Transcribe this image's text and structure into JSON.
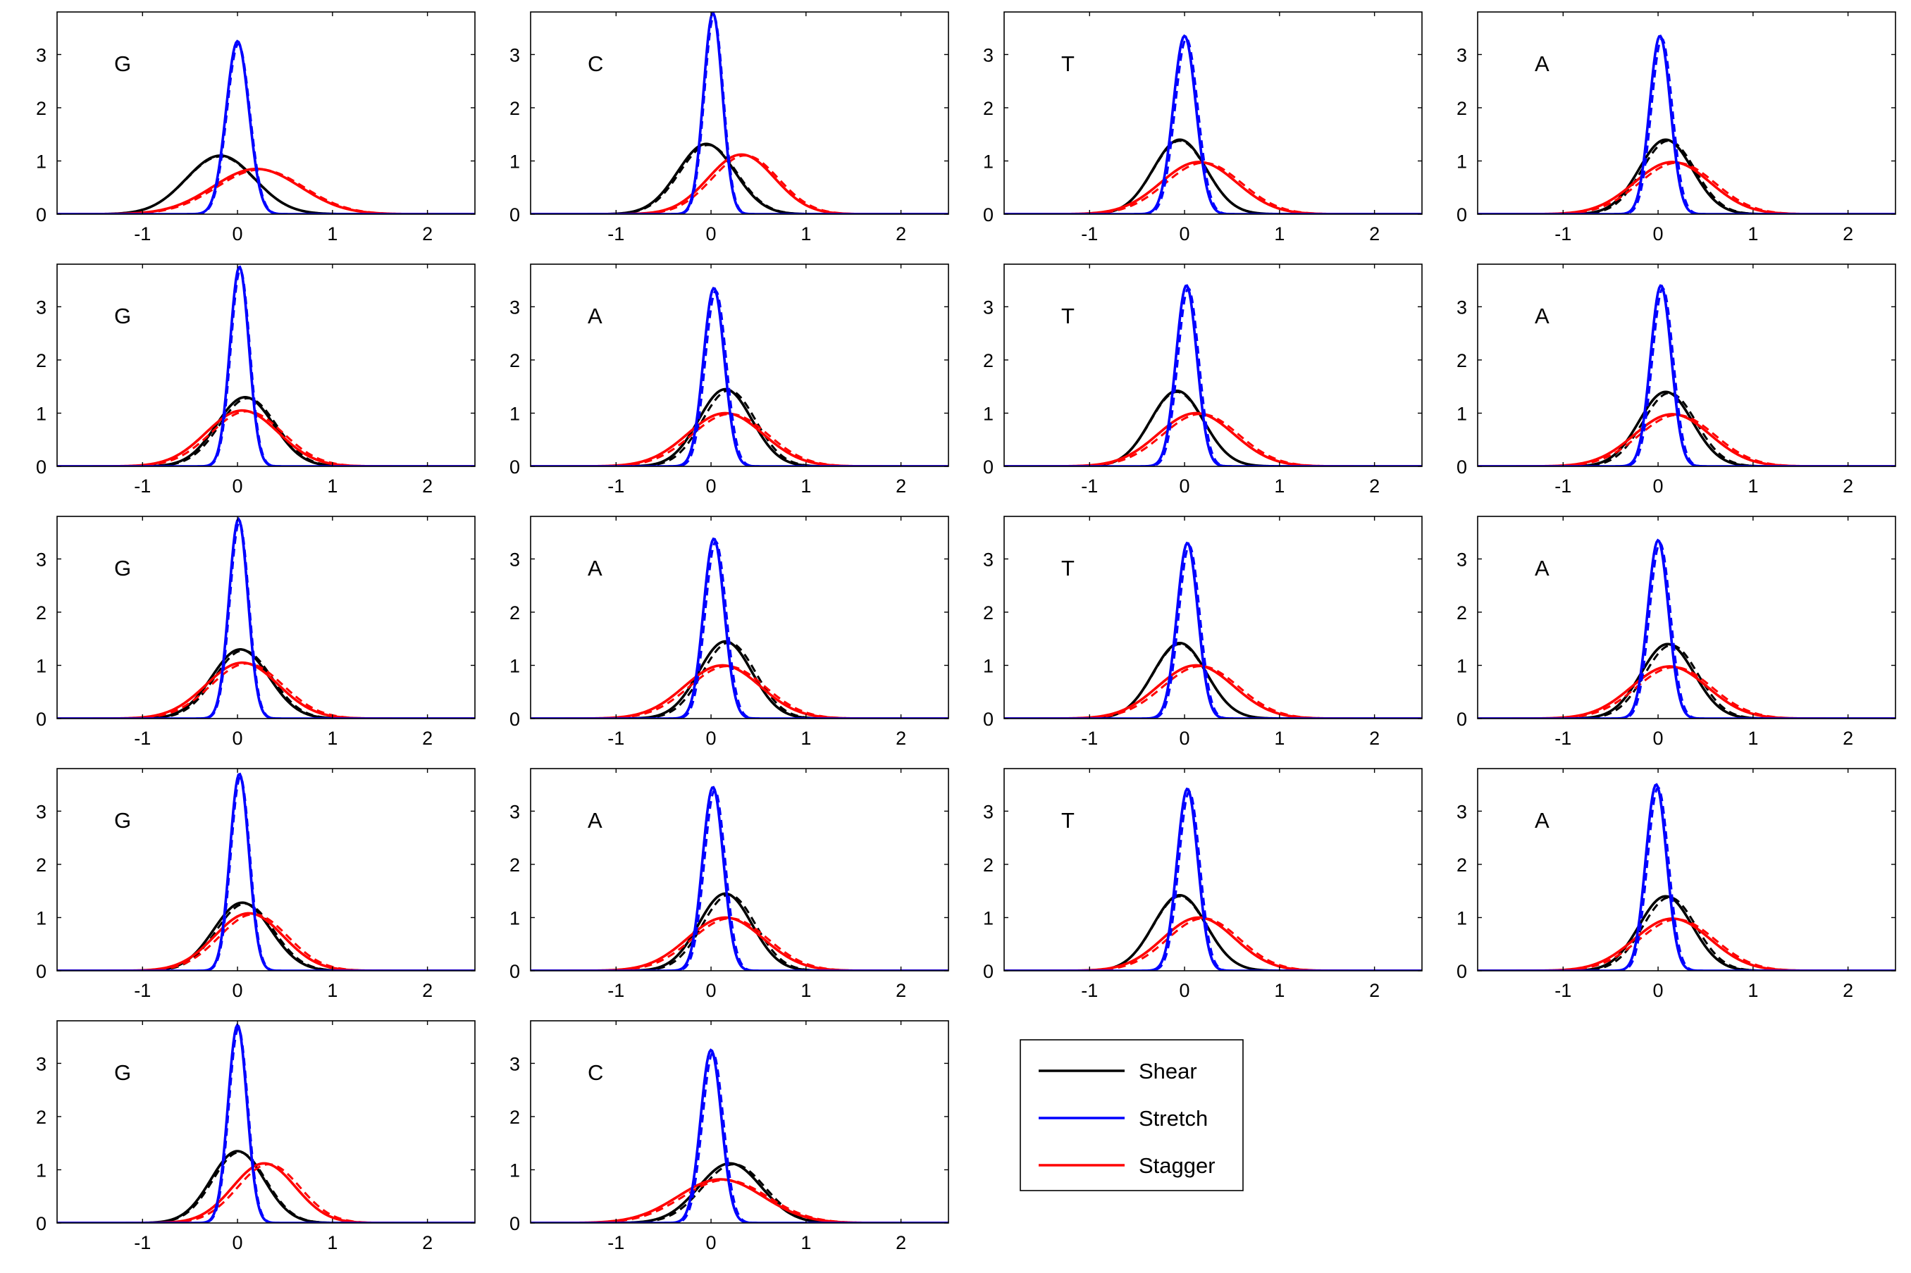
{
  "chart_data": {
    "type": "line",
    "panel_grid": {
      "rows": 5,
      "cols": 4
    },
    "xlim": [
      -1.9,
      2.5
    ],
    "ylim": [
      0,
      3.8
    ],
    "xticks": [
      -1,
      0,
      1,
      2
    ],
    "yticks": [
      0,
      1,
      2,
      3
    ],
    "legend": {
      "placement": "grid-row-5-col-3",
      "entries": [
        {
          "label": "Shear",
          "color": "#000000"
        },
        {
          "label": "Stretch",
          "color": "#0000ff"
        },
        {
          "label": "Stagger",
          "color": "#ff0000"
        }
      ]
    },
    "series_styles": {
      "shear": {
        "color": "#000000"
      },
      "stretch": {
        "color": "#0000ff"
      },
      "stagger": {
        "color": "#ff0000"
      }
    },
    "curve_model": "gaussian density; each curve drawn solid plus a dashed overlay",
    "panels": [
      {
        "label": "G",
        "row": 0,
        "col": 0,
        "curves": {
          "shear": {
            "mean": -0.18,
            "sd": 0.36,
            "peak": 1.1
          },
          "stretch": {
            "mean": 0.0,
            "sd": 0.12,
            "peak": 3.25
          },
          "stagger": {
            "mean": 0.2,
            "sd": 0.46,
            "peak": 0.85
          }
        },
        "dashed_shift": {
          "shear": 0.0,
          "stretch": 0.01,
          "stagger": 0.04
        }
      },
      {
        "label": "C",
        "row": 0,
        "col": 1,
        "curves": {
          "shear": {
            "mean": -0.05,
            "sd": 0.3,
            "peak": 1.32
          },
          "stretch": {
            "mean": 0.02,
            "sd": 0.1,
            "peak": 3.78
          },
          "stagger": {
            "mean": 0.32,
            "sd": 0.35,
            "peak": 1.12
          }
        },
        "dashed_shift": {
          "shear": 0.02,
          "stretch": 0.01,
          "stagger": 0.04
        }
      },
      {
        "label": "T",
        "row": 0,
        "col": 2,
        "curves": {
          "shear": {
            "mean": -0.05,
            "sd": 0.28,
            "peak": 1.4
          },
          "stretch": {
            "mean": 0.0,
            "sd": 0.12,
            "peak": 3.35
          },
          "stagger": {
            "mean": 0.15,
            "sd": 0.4,
            "peak": 0.98
          }
        },
        "dashed_shift": {
          "shear": 0.0,
          "stretch": 0.02,
          "stagger": 0.05
        }
      },
      {
        "label": "A",
        "row": 0,
        "col": 3,
        "curves": {
          "shear": {
            "mean": 0.08,
            "sd": 0.28,
            "peak": 1.4
          },
          "stretch": {
            "mean": 0.02,
            "sd": 0.11,
            "peak": 3.35
          },
          "stagger": {
            "mean": 0.15,
            "sd": 0.4,
            "peak": 0.98
          }
        },
        "dashed_shift": {
          "shear": 0.03,
          "stretch": 0.02,
          "stagger": 0.05
        }
      },
      {
        "label": "G",
        "row": 1,
        "col": 0,
        "curves": {
          "shear": {
            "mean": 0.08,
            "sd": 0.3,
            "peak": 1.3
          },
          "stretch": {
            "mean": 0.02,
            "sd": 0.1,
            "peak": 3.75
          },
          "stagger": {
            "mean": 0.05,
            "sd": 0.38,
            "peak": 1.05
          }
        },
        "dashed_shift": {
          "shear": 0.03,
          "stretch": 0.01,
          "stagger": 0.05
        }
      },
      {
        "label": "A",
        "row": 1,
        "col": 1,
        "curves": {
          "shear": {
            "mean": 0.15,
            "sd": 0.28,
            "peak": 1.45
          },
          "stretch": {
            "mean": 0.03,
            "sd": 0.11,
            "peak": 3.35
          },
          "stagger": {
            "mean": 0.15,
            "sd": 0.4,
            "peak": 1.0
          }
        },
        "dashed_shift": {
          "shear": 0.04,
          "stretch": 0.02,
          "stagger": 0.05
        }
      },
      {
        "label": "T",
        "row": 1,
        "col": 2,
        "curves": {
          "shear": {
            "mean": -0.08,
            "sd": 0.28,
            "peak": 1.42
          },
          "stretch": {
            "mean": 0.02,
            "sd": 0.11,
            "peak": 3.4
          },
          "stagger": {
            "mean": 0.12,
            "sd": 0.4,
            "peak": 1.0
          }
        },
        "dashed_shift": {
          "shear": 0.0,
          "stretch": 0.02,
          "stagger": 0.05
        }
      },
      {
        "label": "A",
        "row": 1,
        "col": 3,
        "curves": {
          "shear": {
            "mean": 0.08,
            "sd": 0.28,
            "peak": 1.4
          },
          "stretch": {
            "mean": 0.03,
            "sd": 0.11,
            "peak": 3.4
          },
          "stagger": {
            "mean": 0.15,
            "sd": 0.4,
            "peak": 0.98
          }
        },
        "dashed_shift": {
          "shear": 0.04,
          "stretch": 0.02,
          "stagger": 0.05
        }
      },
      {
        "label": "G",
        "row": 2,
        "col": 0,
        "curves": {
          "shear": {
            "mean": 0.03,
            "sd": 0.3,
            "peak": 1.3
          },
          "stretch": {
            "mean": 0.01,
            "sd": 0.1,
            "peak": 3.75
          },
          "stagger": {
            "mean": 0.05,
            "sd": 0.38,
            "peak": 1.05
          }
        },
        "dashed_shift": {
          "shear": 0.03,
          "stretch": 0.01,
          "stagger": 0.05
        }
      },
      {
        "label": "A",
        "row": 2,
        "col": 1,
        "curves": {
          "shear": {
            "mean": 0.15,
            "sd": 0.28,
            "peak": 1.45
          },
          "stretch": {
            "mean": 0.03,
            "sd": 0.11,
            "peak": 3.38
          },
          "stagger": {
            "mean": 0.12,
            "sd": 0.4,
            "peak": 1.0
          }
        },
        "dashed_shift": {
          "shear": 0.04,
          "stretch": 0.02,
          "stagger": 0.05
        }
      },
      {
        "label": "T",
        "row": 2,
        "col": 2,
        "curves": {
          "shear": {
            "mean": -0.05,
            "sd": 0.28,
            "peak": 1.42
          },
          "stretch": {
            "mean": 0.03,
            "sd": 0.11,
            "peak": 3.3
          },
          "stagger": {
            "mean": 0.12,
            "sd": 0.4,
            "peak": 1.0
          }
        },
        "dashed_shift": {
          "shear": 0.0,
          "stretch": 0.02,
          "stagger": 0.05
        }
      },
      {
        "label": "A",
        "row": 2,
        "col": 3,
        "curves": {
          "shear": {
            "mean": 0.1,
            "sd": 0.28,
            "peak": 1.4
          },
          "stretch": {
            "mean": 0.0,
            "sd": 0.11,
            "peak": 3.35
          },
          "stagger": {
            "mean": 0.12,
            "sd": 0.4,
            "peak": 0.98
          }
        },
        "dashed_shift": {
          "shear": 0.04,
          "stretch": 0.02,
          "stagger": 0.05
        }
      },
      {
        "label": "G",
        "row": 3,
        "col": 0,
        "curves": {
          "shear": {
            "mean": 0.05,
            "sd": 0.3,
            "peak": 1.28
          },
          "stretch": {
            "mean": 0.02,
            "sd": 0.1,
            "peak": 3.7
          },
          "stagger": {
            "mean": 0.12,
            "sd": 0.36,
            "peak": 1.08
          }
        },
        "dashed_shift": {
          "shear": 0.03,
          "stretch": 0.01,
          "stagger": 0.05
        }
      },
      {
        "label": "A",
        "row": 3,
        "col": 1,
        "curves": {
          "shear": {
            "mean": 0.15,
            "sd": 0.28,
            "peak": 1.45
          },
          "stretch": {
            "mean": 0.02,
            "sd": 0.11,
            "peak": 3.45
          },
          "stagger": {
            "mean": 0.15,
            "sd": 0.4,
            "peak": 1.0
          }
        },
        "dashed_shift": {
          "shear": 0.04,
          "stretch": 0.02,
          "stagger": 0.05
        }
      },
      {
        "label": "T",
        "row": 3,
        "col": 2,
        "curves": {
          "shear": {
            "mean": -0.05,
            "sd": 0.28,
            "peak": 1.42
          },
          "stretch": {
            "mean": 0.03,
            "sd": 0.11,
            "peak": 3.42
          },
          "stagger": {
            "mean": 0.15,
            "sd": 0.38,
            "peak": 1.0
          }
        },
        "dashed_shift": {
          "shear": 0.0,
          "stretch": 0.02,
          "stagger": 0.05
        }
      },
      {
        "label": "A",
        "row": 3,
        "col": 3,
        "curves": {
          "shear": {
            "mean": 0.08,
            "sd": 0.28,
            "peak": 1.4
          },
          "stretch": {
            "mean": -0.02,
            "sd": 0.11,
            "peak": 3.5
          },
          "stagger": {
            "mean": 0.15,
            "sd": 0.4,
            "peak": 0.98
          }
        },
        "dashed_shift": {
          "shear": 0.04,
          "stretch": 0.02,
          "stagger": 0.05
        }
      },
      {
        "label": "G",
        "row": 4,
        "col": 0,
        "curves": {
          "shear": {
            "mean": 0.0,
            "sd": 0.28,
            "peak": 1.35
          },
          "stretch": {
            "mean": 0.0,
            "sd": 0.1,
            "peak": 3.72
          },
          "stagger": {
            "mean": 0.28,
            "sd": 0.33,
            "peak": 1.12
          }
        },
        "dashed_shift": {
          "shear": 0.02,
          "stretch": 0.01,
          "stagger": 0.05
        }
      },
      {
        "label": "C",
        "row": 4,
        "col": 1,
        "curves": {
          "shear": {
            "mean": 0.2,
            "sd": 0.33,
            "peak": 1.12
          },
          "stretch": {
            "mean": 0.0,
            "sd": 0.11,
            "peak": 3.25
          },
          "stagger": {
            "mean": 0.1,
            "sd": 0.45,
            "peak": 0.82
          }
        },
        "dashed_shift": {
          "shear": 0.04,
          "stretch": 0.02,
          "stagger": 0.05
        }
      }
    ]
  }
}
